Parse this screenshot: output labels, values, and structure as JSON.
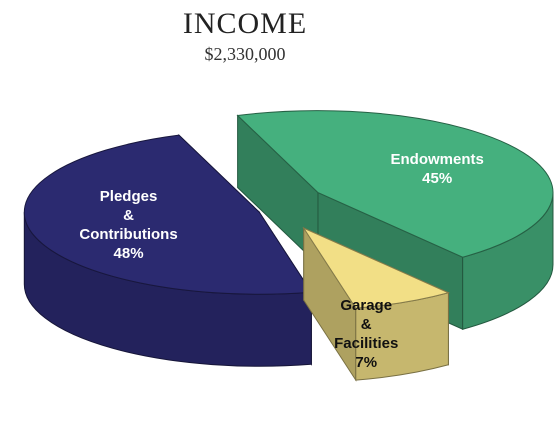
{
  "chart_data": {
    "type": "pie3d",
    "title": "INCOME",
    "subtitle": "$2,330,000",
    "categories": [
      "Endowments",
      "Garage & Facilities",
      "Pledges & Contributions"
    ],
    "values": [
      45,
      7,
      48
    ],
    "value_labels": [
      "45%",
      "7%",
      "48%"
    ],
    "colors": [
      "#45b07e",
      "#f2df86",
      "#2b2a70"
    ],
    "exploded": true
  }
}
